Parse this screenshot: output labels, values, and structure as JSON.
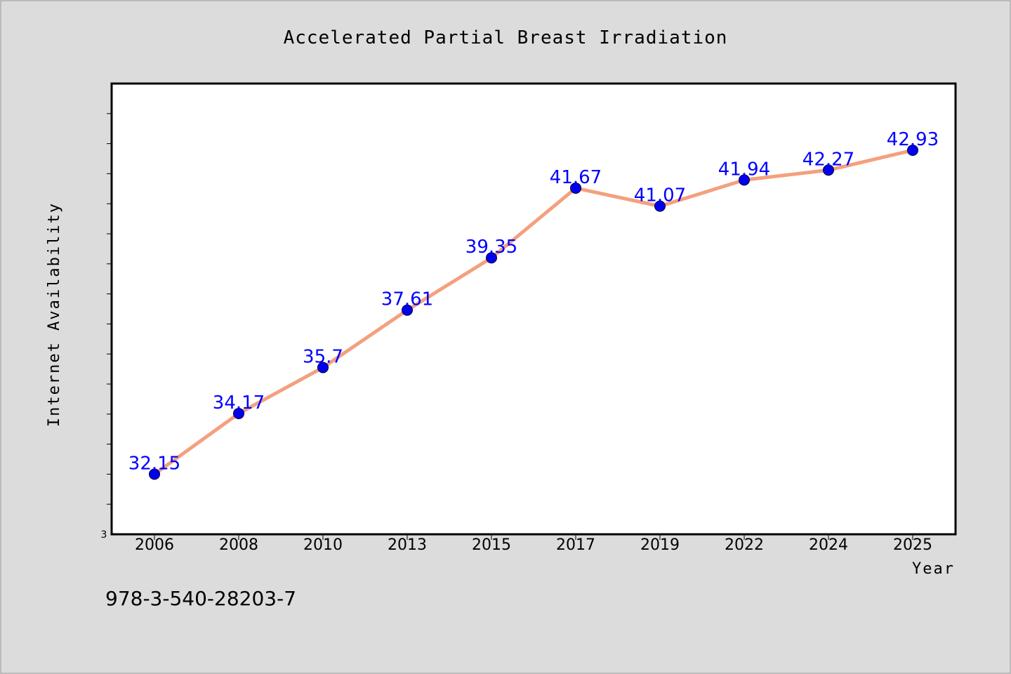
{
  "chart_data": {
    "type": "line",
    "title": "Accelerated Partial Breast Irradiation",
    "xlabel": "Year",
    "ylabel": "Internet Availability",
    "categories": [
      "2006",
      "2008",
      "2010",
      "2013",
      "2015",
      "2017",
      "2019",
      "2022",
      "2024",
      "2025"
    ],
    "series": [
      {
        "values": [
          32.15,
          34.17,
          35.7,
          37.61,
          39.35,
          41.67,
          41.07,
          41.94,
          42.27,
          42.93
        ],
        "labels": [
          "32.15",
          "34.17",
          "35.7",
          "37.61",
          "39.35",
          "41.67",
          "41.07",
          "41.94",
          "42.27",
          "42.93"
        ],
        "line_color": "#f4a07e",
        "marker_color": "#0000ee",
        "label_color": "#0000ff"
      }
    ],
    "y_tick_labels": [
      "3"
    ],
    "ylim": [
      30.15,
      45.15
    ],
    "grid": false,
    "legend": "none"
  },
  "footer": {
    "text": "978-3-540-28203-7"
  },
  "colors": {
    "background": "#dcdcdc",
    "plot_background": "#ffffff"
  }
}
